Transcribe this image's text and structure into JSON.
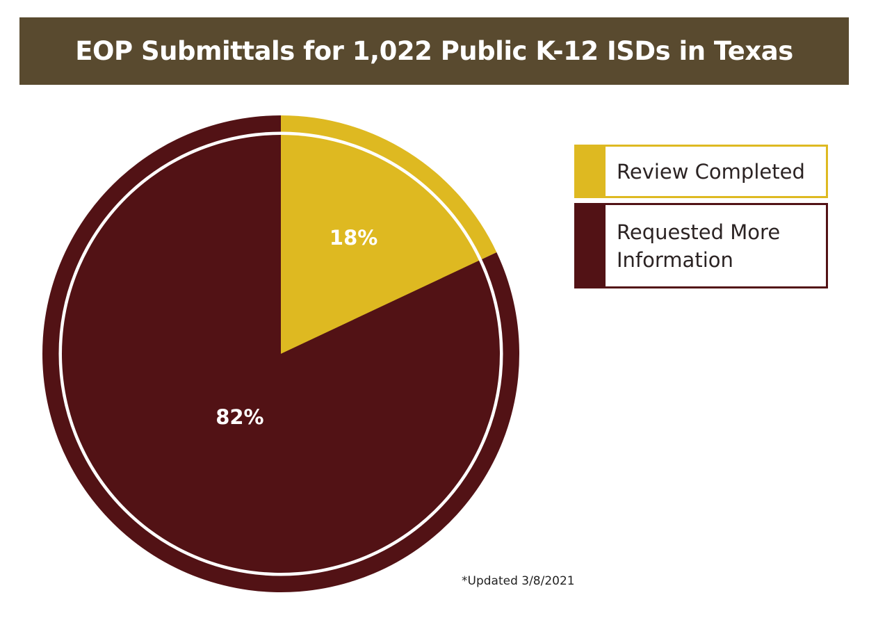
{
  "title": "EOP Submittals for 1,022 Public K-12 ISDs in Texas",
  "footnote": "*Updated 3/8/2021",
  "colors": {
    "header_bg": "#594a2f",
    "review_completed": "#deb921",
    "requested_more_information": "#521215"
  },
  "chart_data": {
    "type": "pie",
    "title": "EOP Submittals for 1,022 Public K-12 ISDs in Texas",
    "legend_position": "right",
    "slices": [
      {
        "label": "Review Completed",
        "value": 18,
        "display": "18%",
        "color": "#deb921"
      },
      {
        "label": "Requested More Information",
        "value": 82,
        "display": "82%",
        "color": "#521215"
      }
    ]
  }
}
